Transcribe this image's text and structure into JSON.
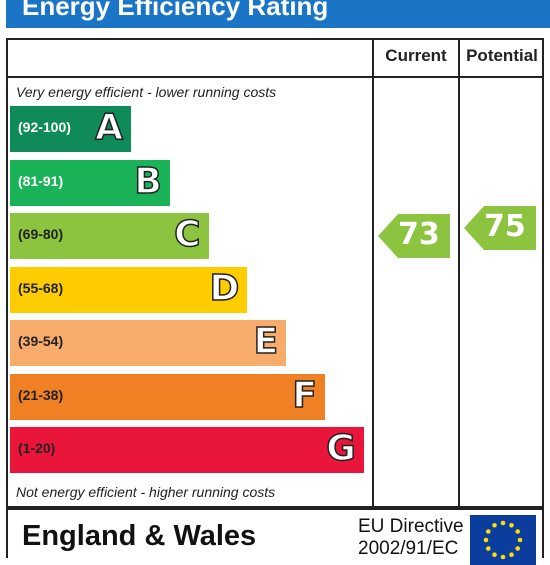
{
  "title": "Energy Efficiency Rating",
  "columns": {
    "current": "Current",
    "potential": "Potential"
  },
  "notes": {
    "top": "Very energy efficient - lower running costs",
    "bottom": "Not energy efficient - higher running costs"
  },
  "chart_data": {
    "type": "bar",
    "title": "Energy Efficiency Rating",
    "bands": [
      {
        "letter": "A",
        "range": "(92-100)",
        "min": 92,
        "max": 100,
        "color": "#0f8b5a",
        "range_color": "#ffffff"
      },
      {
        "letter": "B",
        "range": "(81-91)",
        "min": 81,
        "max": 91,
        "color": "#1bb358",
        "range_color": "#ffffff"
      },
      {
        "letter": "C",
        "range": "(69-80)",
        "min": 69,
        "max": 80,
        "color": "#8cc43f",
        "range_color": "#222222"
      },
      {
        "letter": "D",
        "range": "(55-68)",
        "min": 55,
        "max": 68,
        "color": "#ffcc00",
        "range_color": "#222222"
      },
      {
        "letter": "E",
        "range": "(39-54)",
        "min": 39,
        "max": 54,
        "color": "#f7ac6b",
        "range_color": "#222222"
      },
      {
        "letter": "F",
        "range": "(21-38)",
        "min": 21,
        "max": 38,
        "color": "#ef8023",
        "range_color": "#222222"
      },
      {
        "letter": "G",
        "range": "(1-20)",
        "min": 1,
        "max": 20,
        "color": "#e9153b",
        "range_color": "#222222"
      }
    ],
    "current": {
      "value": 73,
      "band": "C",
      "color": "#8cc43f"
    },
    "potential": {
      "value": 75,
      "band": "C",
      "color": "#8cc43f"
    }
  },
  "footer": {
    "region": "England & Wales",
    "directive_line1": "EU Directive",
    "directive_line2": "2002/91/EC"
  }
}
